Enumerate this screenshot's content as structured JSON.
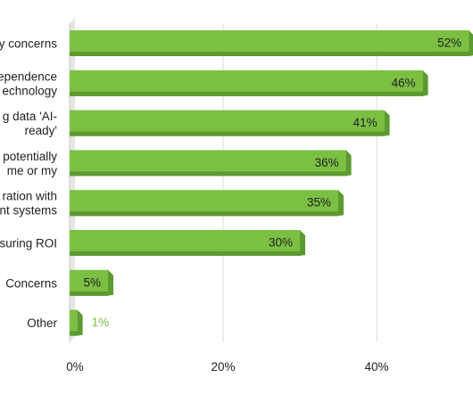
{
  "chart_data": {
    "type": "bar",
    "orientation": "horizontal",
    "style": "3d",
    "categories": [
      [
        "y concerns"
      ],
      [
        "ependence",
        "echnology"
      ],
      [
        "g data 'AI-",
        "ready'"
      ],
      [
        "potentially",
        "me or my"
      ],
      [
        "ration with",
        "nt systems"
      ],
      [
        "suring ROI"
      ],
      [
        "Concerns"
      ],
      [
        "Other"
      ]
    ],
    "values": [
      52,
      46,
      41,
      36,
      35,
      30,
      5,
      1
    ],
    "value_labels": [
      "52%",
      "46%",
      "41%",
      "36%",
      "35%",
      "30%",
      "5%",
      "1%"
    ],
    "xticks": [
      0,
      20,
      40
    ],
    "xtick_labels": [
      "0%",
      "20%",
      "40%"
    ],
    "xlim": [
      0,
      52
    ],
    "grid": "vertical",
    "colors": {
      "bar_face": "#7bc043",
      "bar_side": "#5c9a2f",
      "bar_bottom": "#4a7f25",
      "small_label": "#7bc043",
      "grid": "#dddddd",
      "floor": "#e6e6e6"
    }
  }
}
